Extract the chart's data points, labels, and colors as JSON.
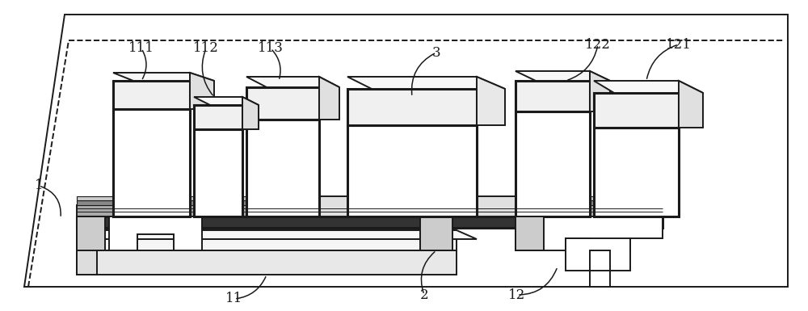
{
  "fig_width": 10.0,
  "fig_height": 3.85,
  "dpi": 100,
  "bg_color": "#ffffff",
  "line_color": "#1a1a1a",
  "lw": 1.4,
  "tlw": 2.2
}
